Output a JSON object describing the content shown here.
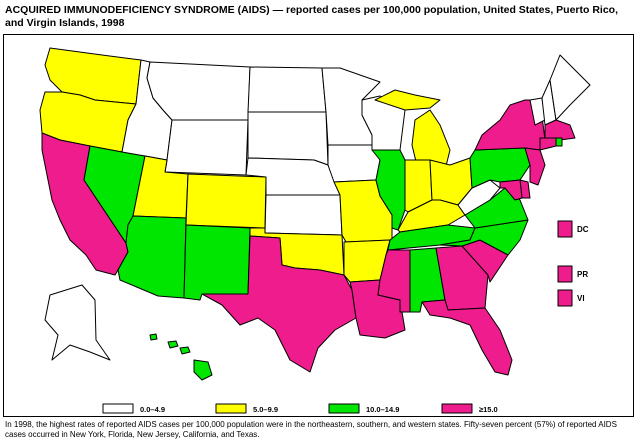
{
  "title": "ACQUIRED IMMUNODEFICIENCY SYNDROME (AIDS) — reported cases per 100,000 population, United States, Puerto Rico, and Virgin Islands, 1998",
  "footnote": "In 1998, the highest rates of reported AIDS cases per 100,000 population were in the northeastern, southern, and western states. Fifty-seven percent (57%) of reported AIDS cases occurred in New York, Florida, New Jersey, California, and Texas.",
  "colors": {
    "0.0-4.9": "#ffffff",
    "5.0-9.9": "#ffff00",
    "10.0-14.9": "#00e600",
    ">=15.0": "#ee1c8c"
  },
  "legend": [
    {
      "label": "0.0–4.9",
      "class": "0.0-4.9"
    },
    {
      "label": "5.0–9.9",
      "class": "5.0-9.9"
    },
    {
      "label": "10.0–14.9",
      "class": "10.0-14.9"
    },
    {
      "label": "≥15.0",
      "class": ">=15.0"
    }
  ],
  "territories": [
    {
      "label": "DC",
      "class": ">=15.0"
    },
    {
      "label": "PR",
      "class": ">=15.0"
    },
    {
      "label": "VI",
      "class": ">=15.0"
    }
  ],
  "states": {
    "WA": "5.0-9.9",
    "OR": "5.0-9.9",
    "CA": ">=15.0",
    "NV": "10.0-14.9",
    "ID": "0.0-4.9",
    "MT": "0.0-4.9",
    "WY": "0.0-4.9",
    "UT": "5.0-9.9",
    "CO": "5.0-9.9",
    "AZ": "10.0-14.9",
    "NM": "10.0-14.9",
    "ND": "0.0-4.9",
    "SD": "0.0-4.9",
    "NE": "0.0-4.9",
    "KS": "0.0-4.9",
    "OK": "5.0-9.9",
    "TX": ">=15.0",
    "MN": "0.0-4.9",
    "IA": "0.0-4.9",
    "MO": "5.0-9.9",
    "AR": "5.0-9.9",
    "LA": ">=15.0",
    "WI": "0.0-4.9",
    "IL": "10.0-14.9",
    "MI_UP": "5.0-9.9",
    "MI": "5.0-9.9",
    "IN": "5.0-9.9",
    "OH": "5.0-9.9",
    "KY": "5.0-9.9",
    "TN": "10.0-14.9",
    "MS": ">=15.0",
    "AL": "10.0-14.9",
    "GA": ">=15.0",
    "FL": ">=15.0",
    "SC": ">=15.0",
    "NC": "10.0-14.9",
    "VA": "10.0-14.9",
    "WV": "0.0-4.9",
    "PA": "10.0-14.9",
    "NY": ">=15.0",
    "VT": "0.0-4.9",
    "NH": "0.0-4.9",
    "ME": "0.0-4.9",
    "MA": ">=15.0",
    "RI": "10.0-14.9",
    "CT": ">=15.0",
    "NJ": ">=15.0",
    "DE": ">=15.0",
    "MD": ">=15.0",
    "AK": "0.0-4.9",
    "HI": "10.0-14.9"
  }
}
